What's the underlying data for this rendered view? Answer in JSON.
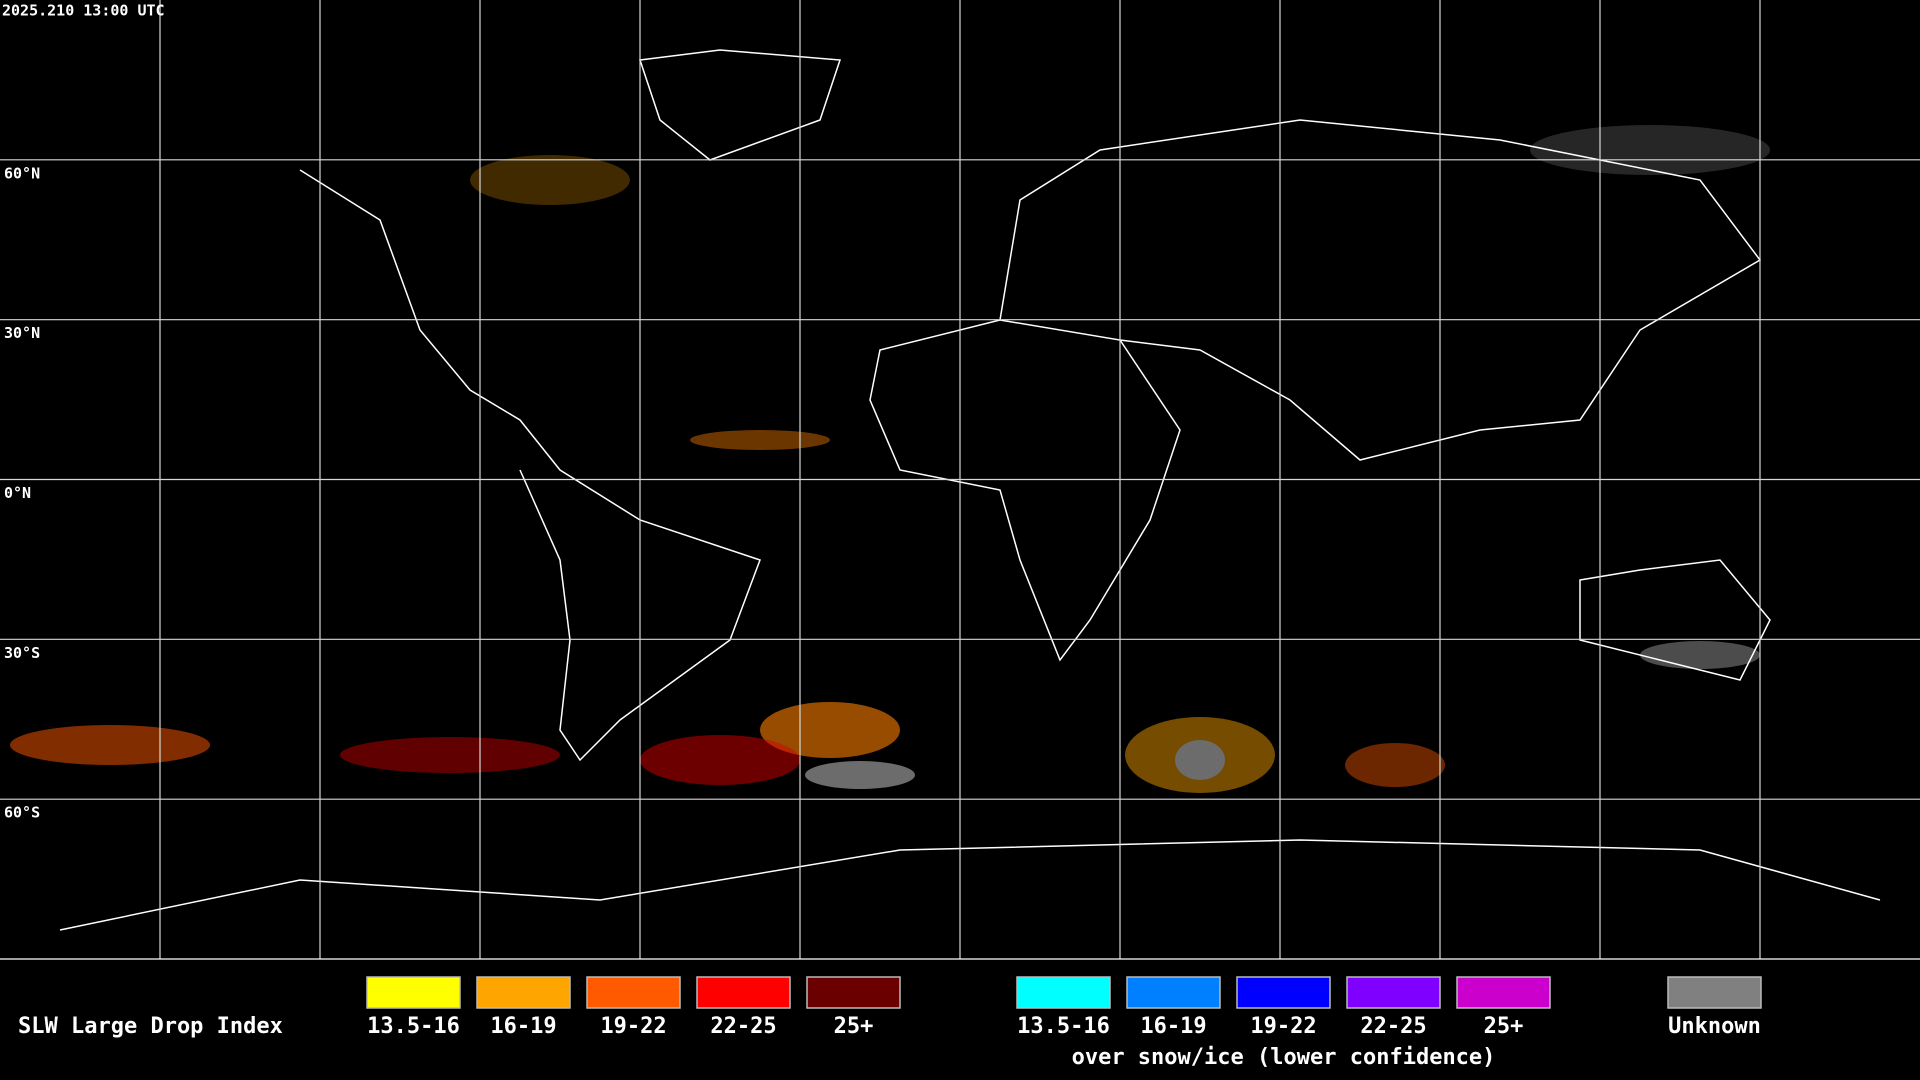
{
  "header": {
    "timestamp": "2025.210 13:00 UTC"
  },
  "map": {
    "latitude_labels": [
      "60°N",
      "30°N",
      "0°N",
      "30°S",
      "60°S"
    ]
  },
  "legend": {
    "title": "SLW Large Drop Index",
    "groups": [
      {
        "items": [
          {
            "label": "13.5-16",
            "color": "#ffff00"
          },
          {
            "label": "16-19",
            "color": "#ffa500"
          },
          {
            "label": "19-22",
            "color": "#ff5a00"
          },
          {
            "label": "22-25",
            "color": "#ff0000"
          },
          {
            "label": "25+",
            "color": "#6b0000"
          }
        ]
      },
      {
        "caption": "over snow/ice (lower confidence)",
        "items": [
          {
            "label": "13.5-16",
            "color": "#00ffff"
          },
          {
            "label": "16-19",
            "color": "#0080ff"
          },
          {
            "label": "19-22",
            "color": "#0000ff"
          },
          {
            "label": "22-25",
            "color": "#8000ff"
          },
          {
            "label": "25+",
            "color": "#cc00cc"
          }
        ]
      },
      {
        "items": [
          {
            "label": "Unknown",
            "color": "#808080"
          }
        ]
      }
    ]
  }
}
